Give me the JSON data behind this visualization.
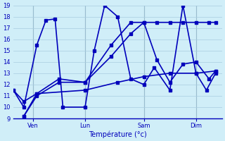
{
  "background_color": "#d0eef8",
  "grid_color": "#a8cce0",
  "line_color": "#0000bb",
  "marker": "s",
  "markersize": 2.5,
  "linewidth": 1.2,
  "xlabel": "Température (°c)",
  "xlabel_fontsize": 7,
  "tick_fontsize": 6,
  "ylim": [
    9,
    19
  ],
  "yticks": [
    9,
    10,
    11,
    12,
    13,
    14,
    15,
    16,
    17,
    18,
    19
  ],
  "xlim": [
    0,
    160
  ],
  "vline_color": "#7799aa",
  "vline_positions": [
    15,
    55,
    100,
    140
  ],
  "xtick_positions": [
    15,
    55,
    100,
    140
  ],
  "xtick_labels": [
    "Ven",
    "Lun",
    "Sam",
    "Dim"
  ],
  "series1_x": [
    0,
    8,
    18,
    25,
    32,
    38,
    55,
    62,
    70,
    80,
    90,
    100,
    108,
    120,
    130,
    140,
    148,
    155
  ],
  "series1_y": [
    11.5,
    10.0,
    15.5,
    17.7,
    17.8,
    10.0,
    10.0,
    15.0,
    19.0,
    18.0,
    12.5,
    12.0,
    13.5,
    11.5,
    19.0,
    13.0,
    11.5,
    13.0
  ],
  "series2_x": [
    0,
    8,
    18,
    55,
    80,
    100,
    120,
    140,
    155
  ],
  "series2_y": [
    11.5,
    10.5,
    11.2,
    11.5,
    12.2,
    12.7,
    13.0,
    13.0,
    13.2
  ],
  "series3_x": [
    8,
    18,
    35,
    55,
    75,
    90,
    100,
    110,
    120,
    130,
    140,
    150,
    155
  ],
  "series3_y": [
    9.2,
    11.2,
    12.5,
    12.2,
    15.5,
    17.5,
    17.5,
    14.2,
    12.2,
    13.8,
    14.0,
    12.5,
    13.2
  ],
  "series4_x": [
    8,
    18,
    35,
    55,
    75,
    90,
    100,
    110,
    120,
    130,
    140,
    150,
    155
  ],
  "series4_y": [
    9.2,
    11.0,
    12.2,
    12.2,
    14.5,
    16.5,
    17.5,
    17.5,
    17.5,
    17.5,
    17.5,
    17.5,
    17.5
  ]
}
